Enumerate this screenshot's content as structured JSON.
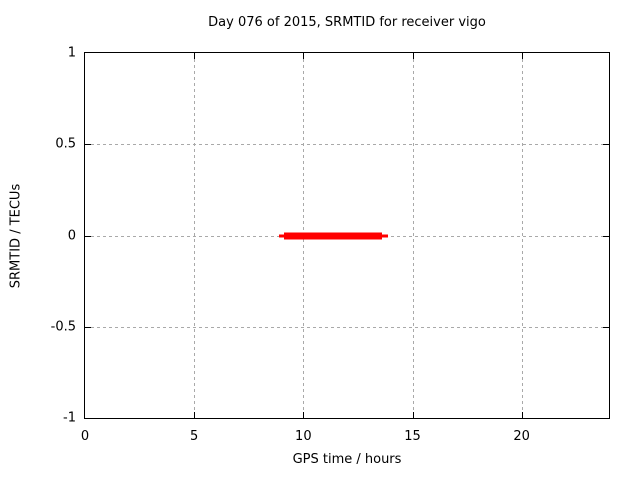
{
  "window": {
    "background": "#ffffff",
    "text_color": "#000000"
  },
  "chart_data": {
    "type": "line",
    "title": "Day 076 of 2015, SRMTID for receiver vigo",
    "xlabel": "GPS time / hours",
    "ylabel": "SRMTID / TECUs",
    "xlim": [
      0,
      24
    ],
    "ylim": [
      -1,
      1
    ],
    "xticks": [
      0,
      5,
      10,
      15,
      20
    ],
    "xtick_labels": [
      "0",
      "5",
      "10",
      "15",
      "20"
    ],
    "yticks": [
      1,
      0.5,
      0,
      -0.5,
      -1
    ],
    "ytick_labels": [
      "1",
      "0.5",
      "0",
      "-0.5",
      "-1"
    ],
    "grid": true,
    "grid_style": "dashed",
    "legend_position": "none",
    "colors": {
      "line": "#ff0000",
      "grid": "#a9a9a9",
      "border": "#000000",
      "text": "#000000"
    },
    "series": [
      {
        "name": "SRMTID",
        "color": "#ff0000",
        "style": "horizontal-segment",
        "y": 0,
        "segments": [
          {
            "x1": 8.9,
            "x2": 13.9,
            "thickness_px": 3
          },
          {
            "x1": 9.1,
            "x2": 13.6,
            "thickness_px": 7
          }
        ]
      }
    ]
  }
}
